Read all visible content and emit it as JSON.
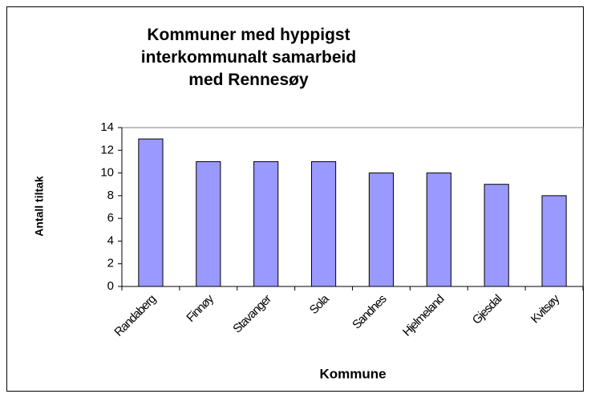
{
  "chart_data": {
    "type": "bar",
    "title": "Kommuner med hyppigst interkommunalt samarbeid med Rennesøy",
    "x_label": "Kommune",
    "y_label": "Antall tiltak",
    "categories": [
      "Randaberg",
      "Finnøy",
      "Stavanger",
      "Sola",
      "Sandnes",
      "Hjelmeland",
      "Gjesdal",
      "Kvitsøy"
    ],
    "values": [
      13,
      11,
      11,
      11,
      10,
      10,
      9,
      8
    ],
    "color": "#9999ff",
    "ylim": [
      0,
      14
    ],
    "yticks": [
      0,
      2,
      4,
      6,
      8,
      10,
      12,
      14
    ],
    "grid": false
  }
}
